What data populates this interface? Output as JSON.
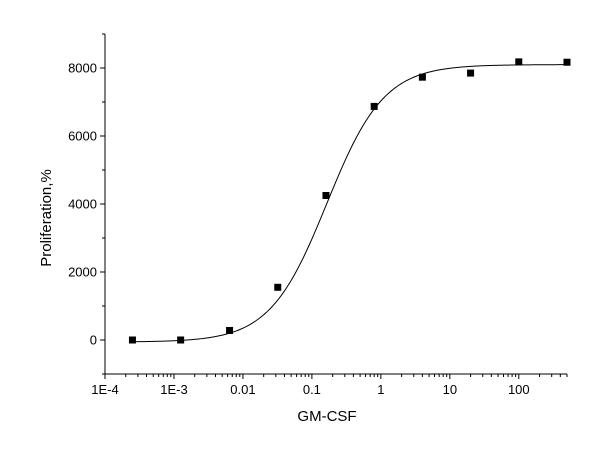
{
  "chart_data": {
    "type": "scatter",
    "title": "",
    "xlabel": "GM-CSF",
    "ylabel": "Proliferation,%",
    "xscale": "log",
    "xlim": [
      0.0001,
      500
    ],
    "ylim": [
      -1000,
      9000
    ],
    "x_ticks": [
      {
        "value": 0.0001,
        "label": "1E-4"
      },
      {
        "value": 0.001,
        "label": "1E-3"
      },
      {
        "value": 0.01,
        "label": "0.01"
      },
      {
        "value": 0.1,
        "label": "0.1"
      },
      {
        "value": 1,
        "label": "1"
      },
      {
        "value": 10,
        "label": "10"
      },
      {
        "value": 100,
        "label": "100"
      }
    ],
    "y_ticks": [
      {
        "value": 0,
        "label": "0"
      },
      {
        "value": 2000,
        "label": "2000"
      },
      {
        "value": 4000,
        "label": "4000"
      },
      {
        "value": 6000,
        "label": "6000"
      },
      {
        "value": 8000,
        "label": "8000"
      }
    ],
    "grid": false,
    "legend": "none",
    "series": [
      {
        "marker": "square",
        "color": "#000000",
        "points": [
          {
            "x": 0.00025,
            "y": 0
          },
          {
            "x": 0.00125,
            "y": 0
          },
          {
            "x": 0.0064,
            "y": 280
          },
          {
            "x": 0.032,
            "y": 1550
          },
          {
            "x": 0.16,
            "y": 4250
          },
          {
            "x": 0.8,
            "y": 6870
          },
          {
            "x": 4,
            "y": 7730
          },
          {
            "x": 20,
            "y": 7850
          },
          {
            "x": 100,
            "y": 8180
          },
          {
            "x": 500,
            "y": 8170
          }
        ]
      }
    ],
    "fit_curve": {
      "model": "sigmoidal-logistic",
      "bottom": -60,
      "top": 8100,
      "x0": 0.165,
      "hill": 1.05,
      "color": "#000000"
    }
  }
}
